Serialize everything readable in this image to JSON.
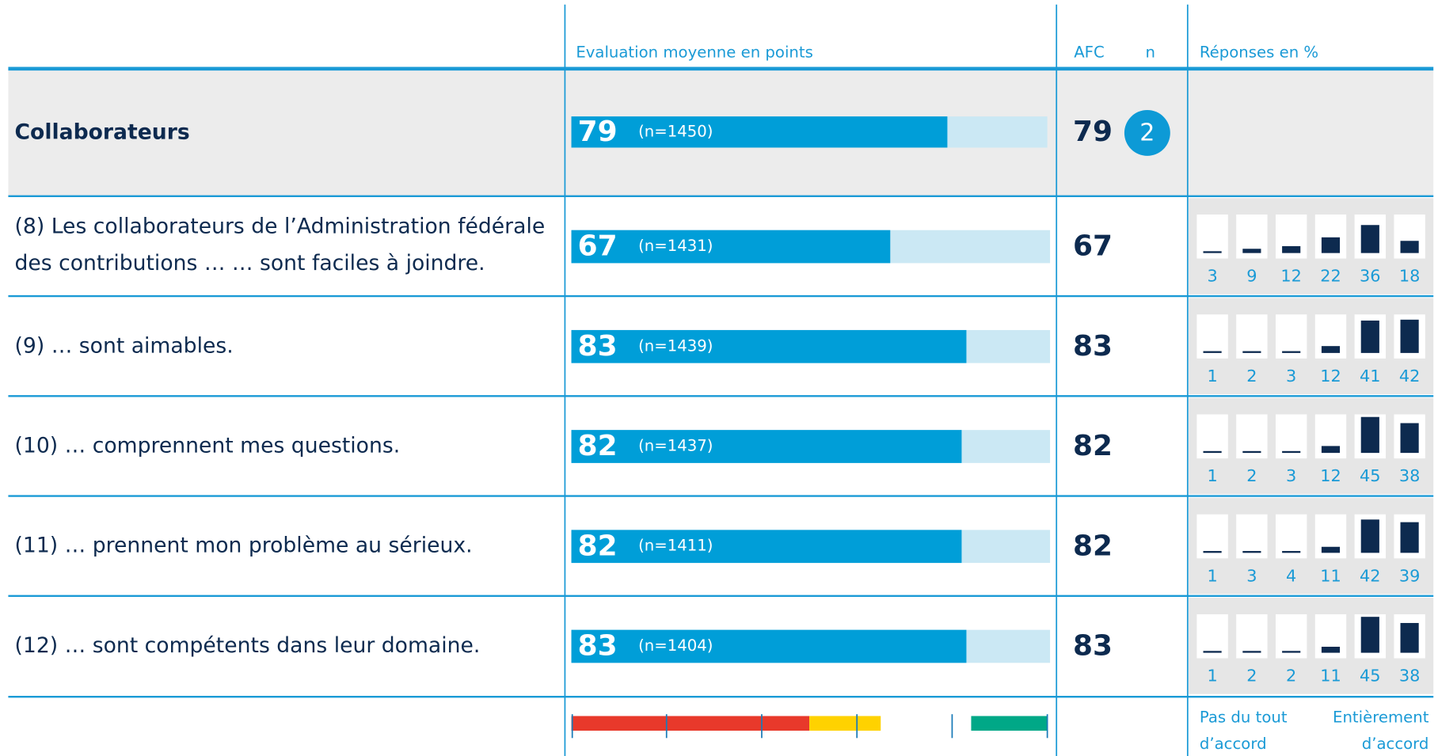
{
  "header": {
    "col_score": "Evaluation moyenne en points",
    "col_afc": "AFC",
    "col_n": "n",
    "col_responses": "Réponses en %"
  },
  "summary": {
    "label": "Collaborateurs",
    "score": 79,
    "n_label": "(n=1450)",
    "afc": 79,
    "n": 2
  },
  "rows": [
    {
      "label_lines": [
        "(8) Les collaborateurs de l’Administration fédérale",
        "des contributions …   … sont faciles à joindre."
      ],
      "score": 67,
      "n_label": "(n=1431)",
      "afc": 67,
      "responses": [
        3,
        9,
        12,
        22,
        36,
        18
      ]
    },
    {
      "label_lines": [
        "(9) … sont aimables."
      ],
      "score": 83,
      "n_label": "(n=1439)",
      "afc": 83,
      "responses": [
        1,
        2,
        3,
        12,
        41,
        42
      ]
    },
    {
      "label_lines": [
        "(10) … comprennent mes questions."
      ],
      "score": 82,
      "n_label": "(n=1437)",
      "afc": 82,
      "responses": [
        1,
        2,
        3,
        12,
        45,
        38
      ]
    },
    {
      "label_lines": [
        "(11) … prennent mon problème au sérieux."
      ],
      "score": 82,
      "n_label": "(n=1411)",
      "afc": 82,
      "responses": [
        1,
        3,
        4,
        11,
        42,
        39
      ]
    },
    {
      "label_lines": [
        "(12) … sont compétents dans leur domaine."
      ],
      "score": 83,
      "n_label": "(n=1404)",
      "afc": 83,
      "responses": [
        1,
        2,
        2,
        11,
        45,
        38
      ]
    }
  ],
  "score_lim": [
    0,
    100
  ],
  "response_lim": [
    0,
    50
  ],
  "scale": {
    "segments": [
      {
        "from": 0,
        "to": 50,
        "color": "#e8392b"
      },
      {
        "from": 50,
        "to": 65,
        "color": "#ffd200"
      },
      {
        "from": 84,
        "to": 100,
        "color": "#00a887"
      }
    ],
    "ticks": [
      20,
      40,
      60,
      80
    ]
  },
  "footer": {
    "left_lines": [
      "Pas du tout",
      "d’accord"
    ],
    "right_lines": [
      "Entièrement",
      "d’accord"
    ]
  }
}
